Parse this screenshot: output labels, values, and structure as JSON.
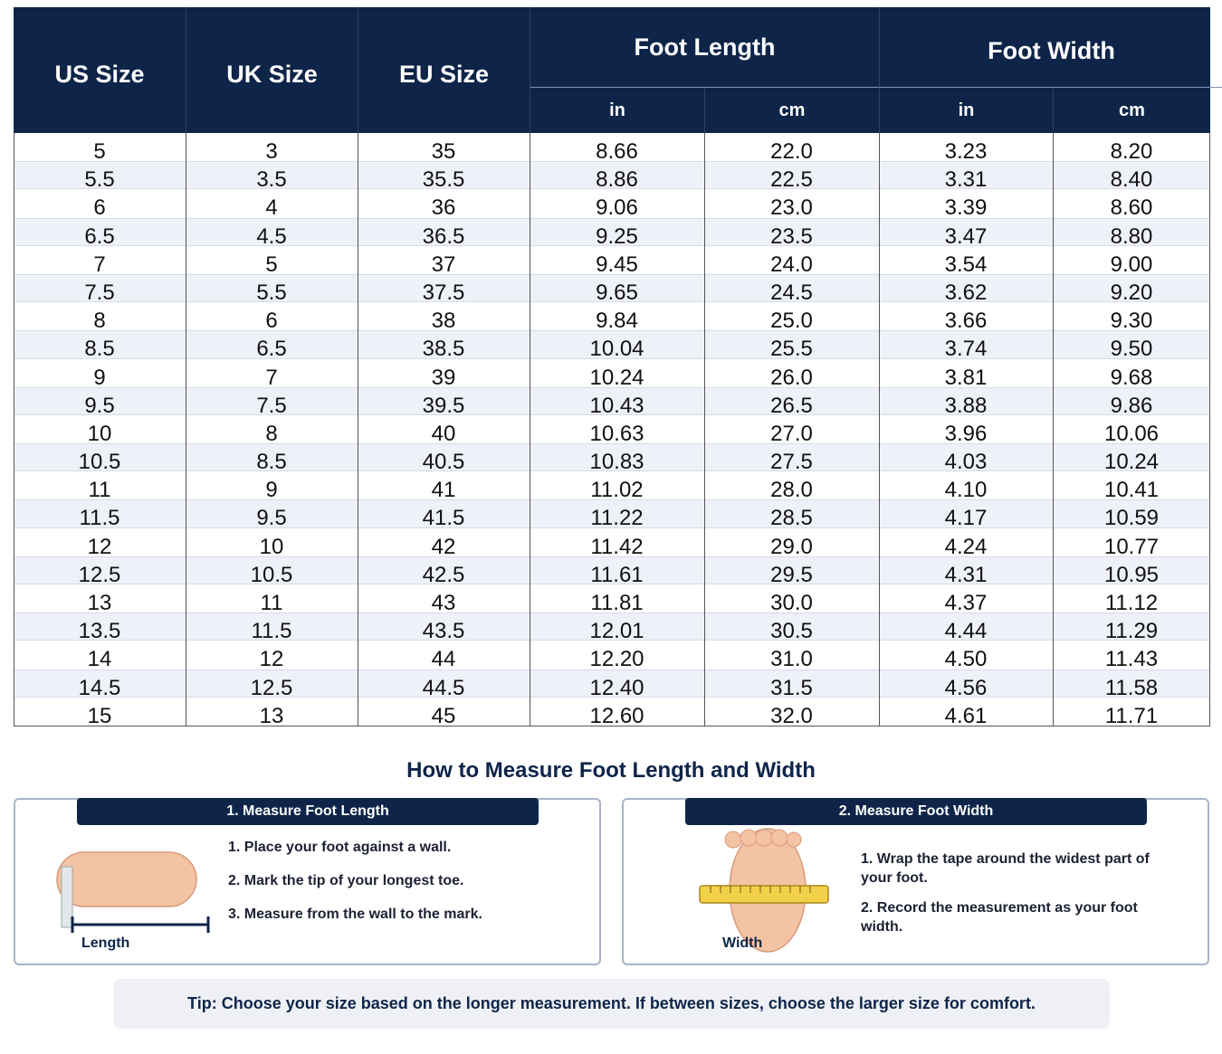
{
  "table": {
    "headers": {
      "us": "US Size",
      "uk": "UK Size",
      "eu": "EU Size",
      "length": "Foot Length",
      "width": "Foot Width",
      "sub": [
        "in",
        "cm",
        "in",
        "cm"
      ]
    },
    "rows": [
      [
        "5",
        "3",
        "35",
        "8.66",
        "22.0",
        "3.23",
        "8.20"
      ],
      [
        "5.5",
        "3.5",
        "35.5",
        "8.86",
        "22.5",
        "3.31",
        "8.40"
      ],
      [
        "6",
        "4",
        "36",
        "9.06",
        "23.0",
        "3.39",
        "8.60"
      ],
      [
        "6.5",
        "4.5",
        "36.5",
        "9.25",
        "23.5",
        "3.47",
        "8.80"
      ],
      [
        "7",
        "5",
        "37",
        "9.45",
        "24.0",
        "3.54",
        "9.00"
      ],
      [
        "7.5",
        "5.5",
        "37.5",
        "9.65",
        "24.5",
        "3.62",
        "9.20"
      ],
      [
        "8",
        "6",
        "38",
        "9.84",
        "25.0",
        "3.66",
        "9.30"
      ],
      [
        "8.5",
        "6.5",
        "38.5",
        "10.04",
        "25.5",
        "3.74",
        "9.50"
      ],
      [
        "9",
        "7",
        "39",
        "10.24",
        "26.0",
        "3.81",
        "9.68"
      ],
      [
        "9.5",
        "7.5",
        "39.5",
        "10.43",
        "26.5",
        "3.88",
        "9.86"
      ],
      [
        "10",
        "8",
        "40",
        "10.63",
        "27.0",
        "3.96",
        "10.06"
      ],
      [
        "10.5",
        "8.5",
        "40.5",
        "10.83",
        "27.5",
        "4.03",
        "10.24"
      ],
      [
        "11",
        "9",
        "41",
        "11.02",
        "28.0",
        "4.10",
        "10.41"
      ],
      [
        "11.5",
        "9.5",
        "41.5",
        "11.22",
        "28.5",
        "4.17",
        "10.59"
      ],
      [
        "12",
        "10",
        "42",
        "11.42",
        "29.0",
        "4.24",
        "10.77"
      ],
      [
        "12.5",
        "10.5",
        "42.5",
        "11.61",
        "29.5",
        "4.31",
        "10.95"
      ],
      [
        "13",
        "11",
        "43",
        "11.81",
        "30.0",
        "4.37",
        "11.12"
      ],
      [
        "13.5",
        "11.5",
        "43.5",
        "12.01",
        "30.5",
        "4.44",
        "11.29"
      ],
      [
        "14",
        "12",
        "44",
        "12.20",
        "31.0",
        "4.50",
        "11.43"
      ],
      [
        "14.5",
        "12.5",
        "44.5",
        "12.40",
        "31.5",
        "4.56",
        "11.58"
      ],
      [
        "15",
        "13",
        "45",
        "12.60",
        "32.0",
        "4.61",
        "11.71"
      ]
    ]
  },
  "guide": {
    "title": "How to Measure Foot Length and Width",
    "cards": [
      {
        "title": "1. Measure Foot Length",
        "steps": [
          "1. Place your foot against a wall.",
          "2. Mark the tip of your longest toe.",
          "3. Measure from the wall to the mark."
        ],
        "label": "Length"
      },
      {
        "title": "2. Measure Foot Width",
        "steps": [
          "1. Wrap the tape around the widest part of your foot.",
          "2. Record the measurement as your foot width."
        ],
        "label": "Width"
      }
    ]
  },
  "tip": "Tip: Choose your size based on the longer measurement. If between sizes, choose the larger size for comfort."
}
